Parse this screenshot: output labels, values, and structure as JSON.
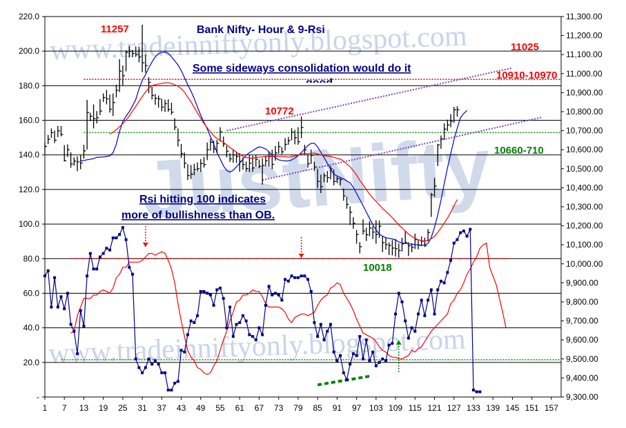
{
  "chart_data": {
    "type": "line",
    "title": "Bank Nifty- Hour & 9-Rsi",
    "watermarks": [
      "www.tradeinniftyonly.blogspot.com",
      "JustNifty"
    ],
    "left_axis": {
      "min": 0,
      "max": 220,
      "tick_labels": [
        "-",
        "20.0",
        "40.0",
        "60.0",
        "80.0",
        "100.0",
        "120.0",
        "140.0",
        "160.0",
        "180.0",
        "200.0",
        "220.0"
      ]
    },
    "right_axis": {
      "min": 9300,
      "max": 11300,
      "tick_labels": [
        "9,300.00",
        "9,400.00",
        "9,500.00",
        "9,600.00",
        "9,700.00",
        "9,800.00",
        "9,900.00",
        "10,000.00",
        "10,100.00",
        "10,200.00",
        "10,300.00",
        "10,400.00",
        "10,500.00",
        "10,600.00",
        "10,700.00",
        "10,800.00",
        "10,900.00",
        "11,000.00",
        "11,100.00",
        "11,200.00",
        "11,300.00"
      ]
    },
    "x_axis": {
      "min": 1,
      "max": 160,
      "tick_labels": [
        "1",
        "7",
        "13",
        "19",
        "25",
        "31",
        "37",
        "43",
        "49",
        "55",
        "61",
        "67",
        "73",
        "79",
        "85",
        "91",
        "97",
        "103",
        "109",
        "115",
        "121",
        "127",
        "133",
        "139",
        "145",
        "151",
        "157"
      ]
    },
    "price_hlc": [
      [
        10638,
        10578,
        10617
      ],
      [
        10678,
        10629,
        10655
      ],
      [
        10712,
        10662,
        10690
      ],
      [
        10701,
        10635,
        10650
      ],
      [
        10725,
        10666,
        10699
      ],
      [
        10724,
        10670,
        10680
      ],
      [
        10624,
        10538,
        10542
      ],
      [
        10628,
        10562,
        10600
      ],
      [
        10586,
        10505,
        10525
      ],
      [
        10560,
        10516,
        10540
      ],
      [
        10565,
        10487,
        10536
      ],
      [
        10571,
        10497,
        10530
      ],
      [
        10626,
        10553,
        10594
      ],
      [
        10862,
        10601,
        10795
      ],
      [
        10794,
        10750,
        10776
      ],
      [
        10838,
        10712,
        10763
      ],
      [
        10803,
        10738,
        10768
      ],
      [
        10866,
        10782,
        10803
      ],
      [
        10896,
        10851,
        10874
      ],
      [
        10914,
        10838,
        10867
      ],
      [
        10890,
        10795,
        10813
      ],
      [
        10896,
        10777,
        10848
      ],
      [
        10942,
        10875,
        10912
      ],
      [
        11076,
        10903,
        11013
      ],
      [
        11043,
        10938,
        10989
      ],
      [
        11123,
        11012,
        11112
      ],
      [
        11145,
        11084,
        11117
      ],
      [
        11125,
        11086,
        11106
      ],
      [
        11142,
        11088,
        11100
      ],
      [
        11141,
        11059,
        11087
      ],
      [
        11257,
        11007,
        11057
      ],
      [
        11100,
        11005,
        11042
      ],
      [
        10981,
        10897,
        10954
      ],
      [
        10931,
        10864,
        10886
      ],
      [
        10893,
        10836,
        10870
      ],
      [
        10885,
        10821,
        10867
      ],
      [
        10868,
        10802,
        10824
      ],
      [
        10863,
        10798,
        10842
      ],
      [
        10865,
        10799,
        10812
      ],
      [
        10847,
        10784,
        10797
      ],
      [
        10765,
        10703,
        10719
      ],
      [
        10712,
        10617,
        10650
      ],
      [
        10630,
        10557,
        10580
      ],
      [
        10585,
        10502,
        10529
      ],
      [
        10524,
        10441,
        10464
      ],
      [
        10519,
        10446,
        10471
      ],
      [
        10526,
        10466,
        10496
      ],
      [
        10533,
        10486,
        10500
      ],
      [
        10551,
        10483,
        10527
      ],
      [
        10562,
        10506,
        10522
      ],
      [
        10638,
        10545,
        10600
      ],
      [
        10658,
        10595,
        10639
      ],
      [
        10648,
        10582,
        10604
      ],
      [
        10651,
        10580,
        10634
      ],
      [
        10718,
        10643,
        10694
      ],
      [
        10669,
        10615,
        10630
      ],
      [
        10620,
        10560,
        10592
      ],
      [
        10581,
        10536,
        10552
      ],
      [
        10602,
        10531,
        10572
      ],
      [
        10587,
        10530,
        10564
      ],
      [
        10582,
        10484,
        10538
      ],
      [
        10558,
        10494,
        10522
      ],
      [
        10538,
        10485,
        10501
      ],
      [
        10575,
        10482,
        10529
      ],
      [
        10569,
        10484,
        10504
      ],
      [
        10572,
        10511,
        10550
      ],
      [
        10548,
        10502,
        10513
      ],
      [
        10555,
        10416,
        10518
      ],
      [
        10568,
        10512,
        10542
      ],
      [
        10591,
        10510,
        10564
      ],
      [
        10600,
        10497,
        10523
      ],
      [
        10620,
        10543,
        10583
      ],
      [
        10642,
        10579,
        10616
      ],
      [
        10613,
        10576,
        10589
      ],
      [
        10661,
        10596,
        10628
      ],
      [
        10667,
        10626,
        10648
      ],
      [
        10713,
        10650,
        10692
      ],
      [
        10704,
        10628,
        10663
      ],
      [
        10718,
        10626,
        10642
      ],
      [
        10774,
        10661,
        10717
      ],
      [
        10626,
        10572,
        10599
      ],
      [
        10575,
        10506,
        10526
      ],
      [
        10601,
        10525,
        10570
      ],
      [
        10537,
        10489,
        10510
      ],
      [
        10498,
        10399,
        10433
      ],
      [
        10469,
        10372,
        10406
      ],
      [
        10477,
        10429,
        10463
      ],
      [
        10488,
        10427,
        10453
      ],
      [
        10513,
        10444,
        10499
      ],
      [
        10496,
        10412,
        10433
      ],
      [
        10458,
        10425,
        10448
      ],
      [
        10456,
        10413,
        10443
      ],
      [
        10396,
        10332,
        10357
      ],
      [
        10352,
        10290,
        10313
      ],
      [
        10302,
        10204,
        10271
      ],
      [
        10245,
        10184,
        10213
      ],
      [
        10178,
        10106,
        10154
      ],
      [
        10114,
        10055,
        10090
      ],
      [
        10234,
        10154,
        10173
      ],
      [
        10190,
        10120,
        10153
      ],
      [
        10224,
        10145,
        10188
      ],
      [
        10197,
        10130,
        10167
      ],
      [
        10229,
        10106,
        10154
      ],
      [
        10228,
        10137,
        10198
      ],
      [
        10146,
        10061,
        10111
      ],
      [
        10140,
        10074,
        10101
      ],
      [
        10112,
        10046,
        10097
      ],
      [
        10125,
        10044,
        10083
      ],
      [
        10131,
        10038,
        10080
      ],
      [
        10107,
        10032,
        10070
      ],
      [
        10137,
        10064,
        10105
      ],
      [
        10170,
        10106,
        10113
      ],
      [
        10114,
        10041,
        10095
      ],
      [
        10109,
        10061,
        10087
      ],
      [
        10159,
        10078,
        10127
      ],
      [
        10127,
        10076,
        10099
      ],
      [
        10144,
        10093,
        10119
      ],
      [
        10138,
        10089,
        10095
      ],
      [
        10183,
        10118,
        10165
      ],
      [
        10373,
        10247,
        10363
      ],
      [
        10452,
        10351,
        10409
      ],
      [
        10630,
        10514,
        10625
      ],
      [
        10675,
        10605,
        10657
      ],
      [
        10739,
        10652,
        10708
      ],
      [
        10758,
        10698,
        10730
      ],
      [
        10787,
        10718,
        10748
      ],
      [
        10825,
        10742,
        10810
      ],
      [
        10828,
        10773,
        10810
      ]
    ],
    "price_ma": [
      10541,
      10543,
      10547,
      10550,
      10553,
      10560,
      10561,
      10562,
      10564,
      10568,
      10584,
      10629,
      10697,
      10748,
      10776,
      10800,
      10831,
      10864,
      10920,
      10964,
      10994,
      11031,
      11061,
      11088,
      11105,
      11111,
      11113,
      11107,
      11088,
      11067,
      11045,
      11016,
      10979,
      10942,
      10908,
      10869,
      10824,
      10781,
      10744,
      10710,
      10669,
      10629,
      10586,
      10551,
      10515,
      10491,
      10482,
      10492,
      10510,
      10529,
      10551,
      10571,
      10584,
      10595,
      10606,
      10615,
      10611,
      10604,
      10589,
      10570,
      10558,
      10547,
      10543,
      10541,
      10541,
      10546,
      10556,
      10569,
      10585,
      10604,
      10622,
      10633,
      10634,
      10615,
      10586,
      10558,
      10529,
      10499,
      10472,
      10462,
      10454,
      10446,
      10436,
      10426,
      10402,
      10370,
      10338,
      10306,
      10272,
      10239,
      10206,
      10178,
      10156,
      10146,
      10137,
      10134,
      10131,
      10125,
      10115,
      10110,
      10107,
      10105,
      10103,
      10101,
      10099,
      10096,
      10100,
      10107,
      10138,
      10192,
      10257,
      10335,
      10422,
      10504,
      10579,
      10652,
      10713,
      10768,
      10790,
      10806
    ],
    "rsi": [
      70,
      73,
      52,
      69,
      52,
      58,
      51,
      60,
      42,
      38,
      25,
      50,
      41,
      70,
      83,
      74,
      74,
      81,
      83,
      86,
      85,
      92,
      92,
      94,
      98,
      91,
      75,
      71,
      22,
      17,
      14,
      17,
      22,
      19,
      21,
      19,
      14,
      14,
      4,
      4,
      8,
      9,
      27,
      26,
      36,
      44,
      43,
      47,
      61,
      61,
      60,
      59,
      53,
      62,
      63,
      57,
      40,
      52,
      35,
      42,
      43,
      47,
      44,
      36,
      35,
      33,
      40,
      36,
      53,
      64,
      59,
      60,
      59,
      56,
      68,
      67,
      70,
      69,
      69,
      70,
      70,
      68,
      61,
      43,
      35,
      42,
      33,
      38,
      42,
      26,
      21,
      24,
      14,
      10,
      19,
      25,
      24,
      35,
      22,
      33,
      21,
      26,
      18,
      20,
      22,
      21,
      30,
      31,
      48,
      60,
      55,
      44,
      34,
      40,
      38,
      48,
      56,
      47,
      56,
      62,
      48,
      62,
      67,
      66,
      72,
      79,
      89,
      91,
      95,
      96,
      93,
      97,
      4,
      3,
      3
    ],
    "rsi_ma": [
      37,
      38,
      47,
      52,
      57,
      57,
      57,
      59,
      59,
      61,
      62,
      61,
      60,
      63,
      69,
      71,
      75,
      75,
      78,
      78,
      78,
      78,
      79,
      81,
      83,
      83,
      82,
      83,
      84,
      83,
      79,
      74,
      66,
      54,
      44,
      35,
      27,
      23,
      21,
      17,
      16,
      14,
      13,
      14,
      18,
      21,
      27,
      33,
      38,
      44,
      49,
      55,
      56,
      59,
      59,
      60,
      62,
      61,
      61,
      58,
      54,
      52,
      52,
      52,
      52,
      51,
      49,
      45,
      43,
      46,
      47,
      48,
      48,
      47,
      48,
      49,
      53,
      56,
      58,
      59,
      63,
      64,
      66,
      65,
      60,
      57,
      54,
      50,
      45,
      41,
      37,
      36,
      35,
      34,
      32,
      29,
      27,
      26,
      24,
      23,
      23,
      22,
      22,
      23,
      24,
      27,
      26,
      28,
      29,
      32,
      35,
      38,
      40,
      42,
      44,
      46,
      48,
      54,
      56,
      60,
      62,
      66,
      71,
      74,
      78,
      81,
      86,
      88,
      89,
      75,
      70,
      65,
      57,
      49,
      40
    ]
  },
  "annotations": {
    "peak_high": "11257",
    "swing_high": "10772",
    "swing_low": "10018",
    "target_1": "11025",
    "resistance_zone": "10910-10970",
    "support_zone": "10660-710",
    "sideways_note": "Some sideways consolidation would do it",
    "sideways_note_clipped": "good",
    "rsi_note_line1": "Rsi hitting 100 indicates",
    "rsi_note_line2": "more of bullishness than OB."
  },
  "colors": {
    "price_bars": "#000000",
    "price_ma": "#0000CC",
    "price_ma_long": "#FF0000",
    "rsi_line": "#000080",
    "rsi_ma": "#FF0000",
    "resistance_line": "#CC0000",
    "support_line": "#008000",
    "trend_channel": "#8040C0",
    "title_text": "#000080",
    "red_labels": "#FF0000",
    "green_labels": "#008000",
    "watermark": "#C8D4E8"
  }
}
